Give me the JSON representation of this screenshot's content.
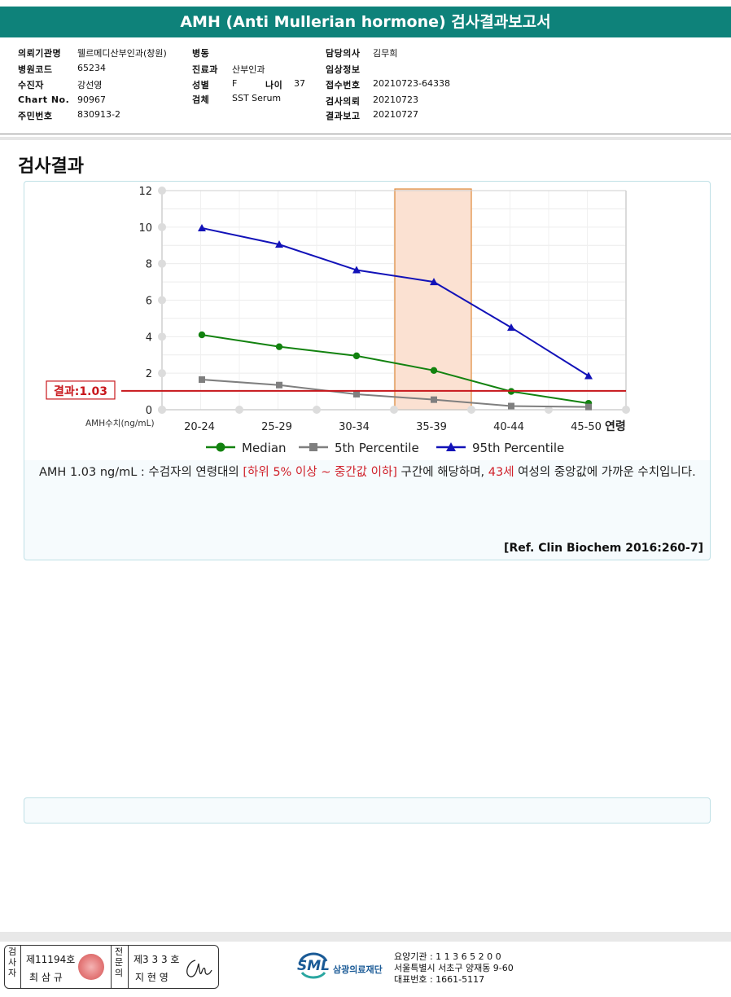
{
  "report": {
    "title": "AMH (Anti Mullerian hormone) 검사결과보고서"
  },
  "info": {
    "col1": [
      {
        "label": "의뢰기관명",
        "value": "웰르메디산부인과(창원)"
      },
      {
        "label": "병원코드",
        "value": "65234"
      },
      {
        "label": "수진자",
        "value": "강선영"
      },
      {
        "label": "Chart No.",
        "value": "90967"
      },
      {
        "label": "주민번호",
        "value": "830913-2"
      }
    ],
    "col2": [
      {
        "label": "병동",
        "value": ""
      },
      {
        "label": "진료과",
        "value": "산부인과"
      },
      {
        "label": "성별",
        "value": "F"
      },
      {
        "label": "검체",
        "value": "SST Serum"
      }
    ],
    "age_label": "나이",
    "age_value": "37",
    "col3": [
      {
        "label": "담당의사",
        "value": "김무희"
      },
      {
        "label": "임상정보",
        "value": ""
      },
      {
        "label": "접수번호",
        "value": "20210723-64338"
      },
      {
        "label": "검사의뢰",
        "value": "20210723"
      },
      {
        "label": "결과보고",
        "value": "20210727"
      }
    ]
  },
  "section_title": "검사결과",
  "chart_data": {
    "type": "line",
    "categories": [
      "20-24",
      "25-29",
      "30-34",
      "35-39",
      "40-44",
      "45-50"
    ],
    "xlabel": "연령",
    "ylabel": "AMH수치(ng/mL)",
    "ylim": [
      0,
      12
    ],
    "yticks": [
      "0",
      "2",
      "4",
      "6",
      "8",
      "10",
      "12"
    ],
    "grid": true,
    "highlight_category": "35-39",
    "highlight_color": "#fbe1d2",
    "result_line": {
      "value": 1.03,
      "label": "결과:1.03",
      "color": "#c8171c"
    },
    "legend_position": "bottom",
    "series": [
      {
        "name": "Median",
        "color": "#12820f",
        "marker": "circle",
        "values": [
          4.1,
          3.45,
          2.95,
          2.15,
          1.0,
          0.35
        ]
      },
      {
        "name": "5th Percentile",
        "color": "#7f7f7f",
        "marker": "square",
        "values": [
          1.65,
          1.35,
          0.85,
          0.55,
          0.2,
          0.15
        ]
      },
      {
        "name": "95th Percentile",
        "color": "#1212b8",
        "marker": "triangle",
        "values": [
          9.95,
          9.05,
          7.65,
          7.0,
          4.5,
          1.85
        ]
      }
    ]
  },
  "description": {
    "part1": "AMH  1.03 ng/mL : 수검자의 연령대의 ",
    "highlight1": "[하위 5% 이상 ~ 중간값 이하]",
    "part2": " 구간에 해당하며, ",
    "highlight2": "43세",
    "part3": " 여성의 중앙값에 가까운 수치입니다."
  },
  "reference": "[Ref. Clin Biochem 2016:260-7]",
  "footer": {
    "inspector_label": "검사자",
    "inspector_license": "제11194호",
    "inspector_name": "최 삼 규",
    "specialist_label": "전문의",
    "specialist_license": "제3 3 3 호",
    "specialist_name": "지 현 영",
    "logo_text": "SML",
    "org_name": "삼광의료재단",
    "org_code": "요양기관 : 1 1 3 6 5 2 0 0",
    "org_address": "서울특별시 서초구 양재동 9-60",
    "org_phone": "대표번호 : 1661-5117"
  }
}
